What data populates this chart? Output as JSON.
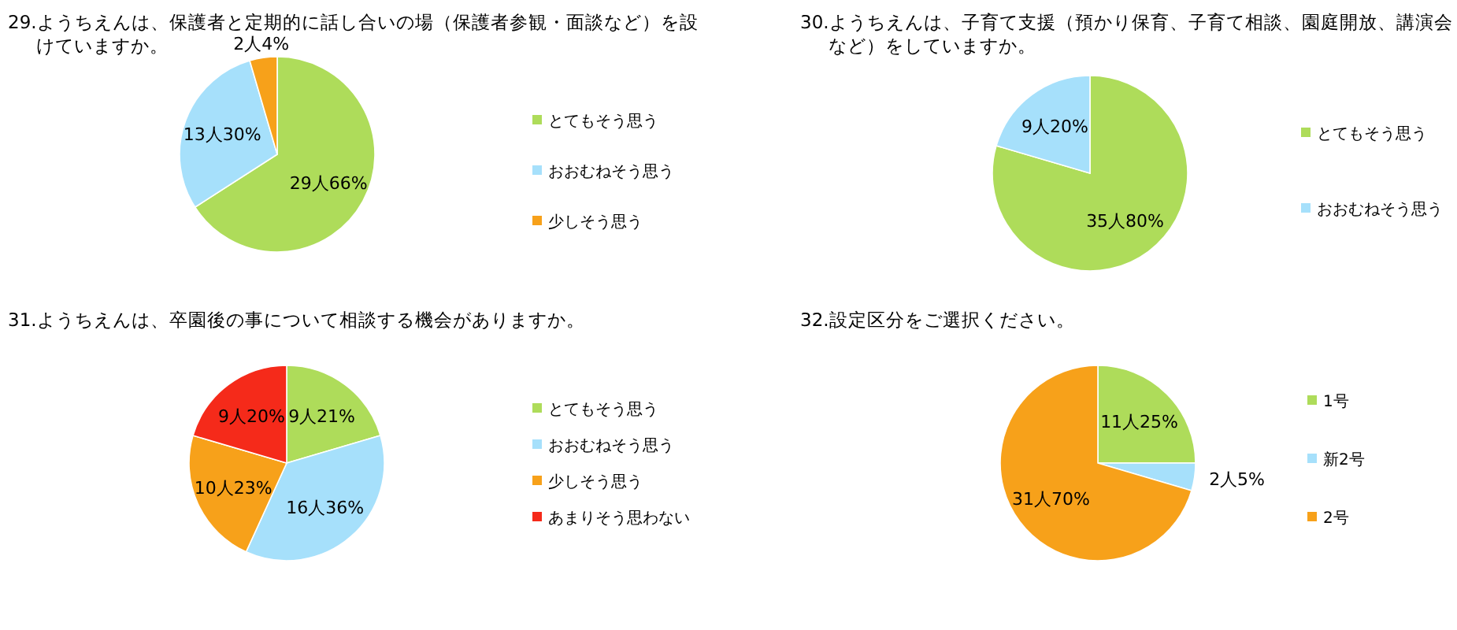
{
  "chart_data": [
    {
      "type": "pie",
      "title": "29.ようちえんは、保護者と定期的に話し合いの場（保護者参観・面談など）を設けていますか。",
      "categories": [
        "とてもそう思う",
        "おおむねそう思う",
        "少しそう思う"
      ],
      "values": [
        29,
        13,
        2
      ],
      "value_labels": [
        "29人66%",
        "13人30%",
        "2人4%"
      ],
      "colors": [
        "#aedc5a",
        "#a6e0fb",
        "#f7a11a"
      ],
      "legend": "right"
    },
    {
      "type": "pie",
      "title": "30.ようちえんは、子育て支援（預かり保育、子育て相談、園庭開放、講演会など）をしていますか。",
      "categories": [
        "とてもそう思う",
        "おおむねそう思う"
      ],
      "values": [
        35,
        9
      ],
      "value_labels": [
        "35人80%",
        "9人20%"
      ],
      "colors": [
        "#aedc5a",
        "#a6e0fb"
      ],
      "legend": "right"
    },
    {
      "type": "pie",
      "title": "31.ようちえんは、卒園後の事について相談する機会がありますか。",
      "categories": [
        "とてもそう思う",
        "おおむねそう思う",
        "少しそう思う",
        "あまりそう思わない"
      ],
      "values": [
        9,
        16,
        10,
        9
      ],
      "value_labels": [
        "9人21%",
        "16人36%",
        "10人23%",
        "9人20%"
      ],
      "colors": [
        "#aedc5a",
        "#a6e0fb",
        "#f7a11a",
        "#f52a1a"
      ],
      "legend": "right"
    },
    {
      "type": "pie",
      "title": "32.設定区分をご選択ください。",
      "categories": [
        "1号",
        "新2号",
        "2号"
      ],
      "values": [
        11,
        2,
        31
      ],
      "value_labels": [
        "11人25%",
        "2人5%",
        "31人70%"
      ],
      "colors": [
        "#aedc5a",
        "#a6e0fb",
        "#f7a11a"
      ],
      "legend": "right"
    }
  ]
}
